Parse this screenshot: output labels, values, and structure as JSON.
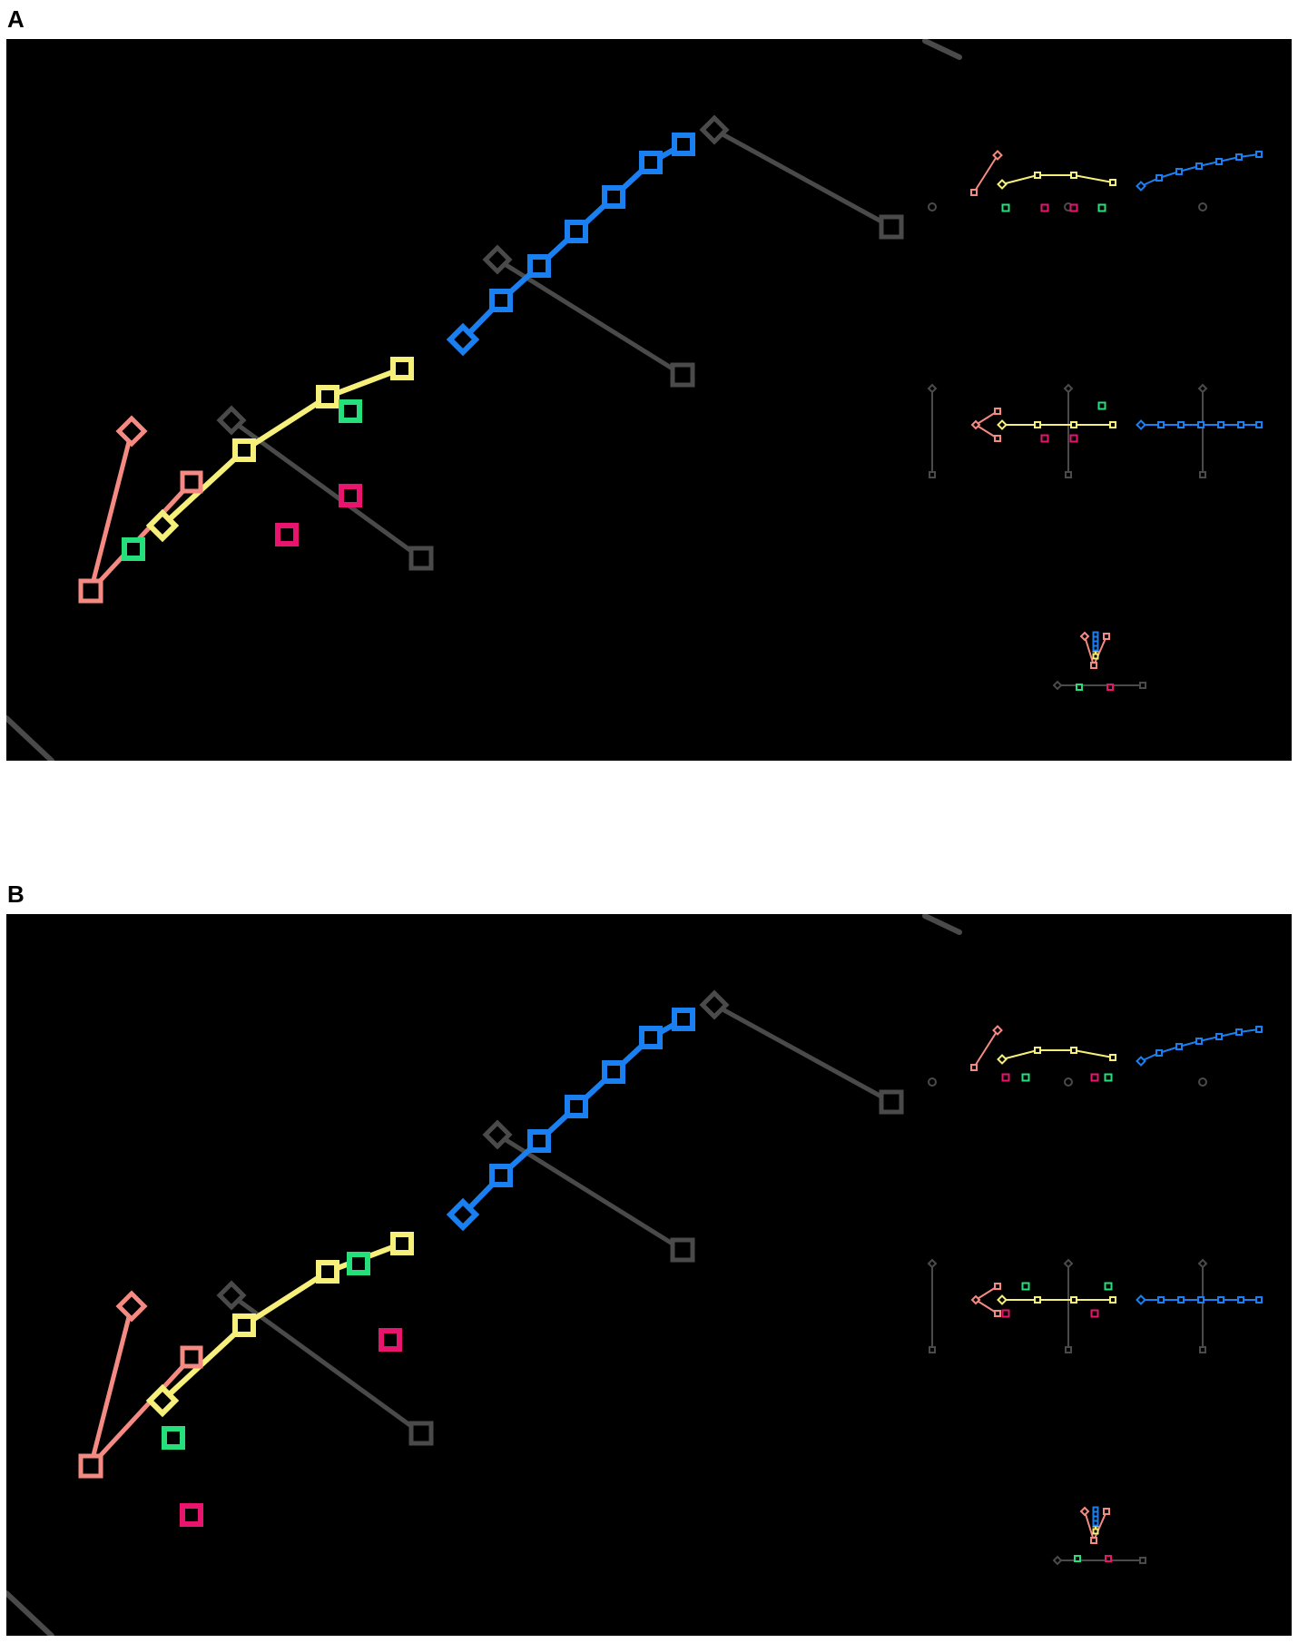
{
  "figure": {
    "panels": [
      {
        "id": "a",
        "label": "A"
      },
      {
        "id": "b",
        "label": "B"
      }
    ]
  },
  "colors": {
    "background": "#000000",
    "gray": "#4a4a4a",
    "salmon": "#f58a82",
    "yellow": "#f6f07a",
    "blue": "#1a7ff0",
    "green": "#25e07a",
    "magenta": "#e8146e"
  }
}
